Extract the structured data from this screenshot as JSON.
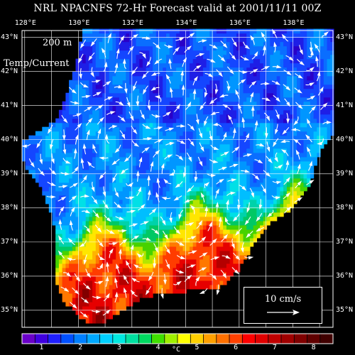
{
  "title": "NRL NPACNFS 72-Hr Forecast valid at 2001/11/11 00Z",
  "depth_label": "200 m",
  "field_label": "Temp/Current",
  "reference_vector": {
    "label": "10 cm/s",
    "speed_cm_s": 10
  },
  "lon_labels": [
    "128°E",
    "130°E",
    "132°E",
    "134°E",
    "136°E",
    "138°E"
  ],
  "lat_labels": [
    "43°N",
    "42°N",
    "41°N",
    "40°N",
    "39°N",
    "38°N",
    "37°N",
    "36°N",
    "35°N"
  ],
  "map_extent": {
    "lon_min": 127.9,
    "lon_max": 139.5,
    "lat_min": 34.5,
    "lat_max": 43.2
  },
  "colorbar": {
    "unit": "°C",
    "tick_labels": [
      "1",
      "2",
      "3",
      "4",
      "5",
      "6",
      "7",
      "8"
    ],
    "range": [
      0.5,
      8.5
    ],
    "colors": [
      "#2a00c8",
      "#1e1ee6",
      "#1446ff",
      "#0a6eff",
      "#0096ff",
      "#00beff",
      "#00e0e6",
      "#00d2aa",
      "#00c864",
      "#46d200",
      "#b4e600",
      "#ffe600",
      "#ffb400",
      "#ff7800",
      "#ff3c00",
      "#e60000",
      "#b40000",
      "#820000",
      "#5a0000"
    ],
    "colors_legend": [
      "#6a00c8",
      "#4000e0",
      "#2020ff",
      "#0050ff",
      "#0080ff",
      "#00a8ff",
      "#00d0ff",
      "#00e8e0",
      "#00e0a0",
      "#00d860",
      "#40e000",
      "#a0f000",
      "#ffff00",
      "#ffd000",
      "#ffa000",
      "#ff7000",
      "#ff4000",
      "#ff0000",
      "#e00000",
      "#c00000",
      "#a00000",
      "#800000",
      "#600000",
      "#400000"
    ]
  },
  "colors": {
    "background": "#000000",
    "text": "#ffffff",
    "grid": "#ffffff",
    "land": "#000000",
    "vectors": "#ffffff"
  }
}
